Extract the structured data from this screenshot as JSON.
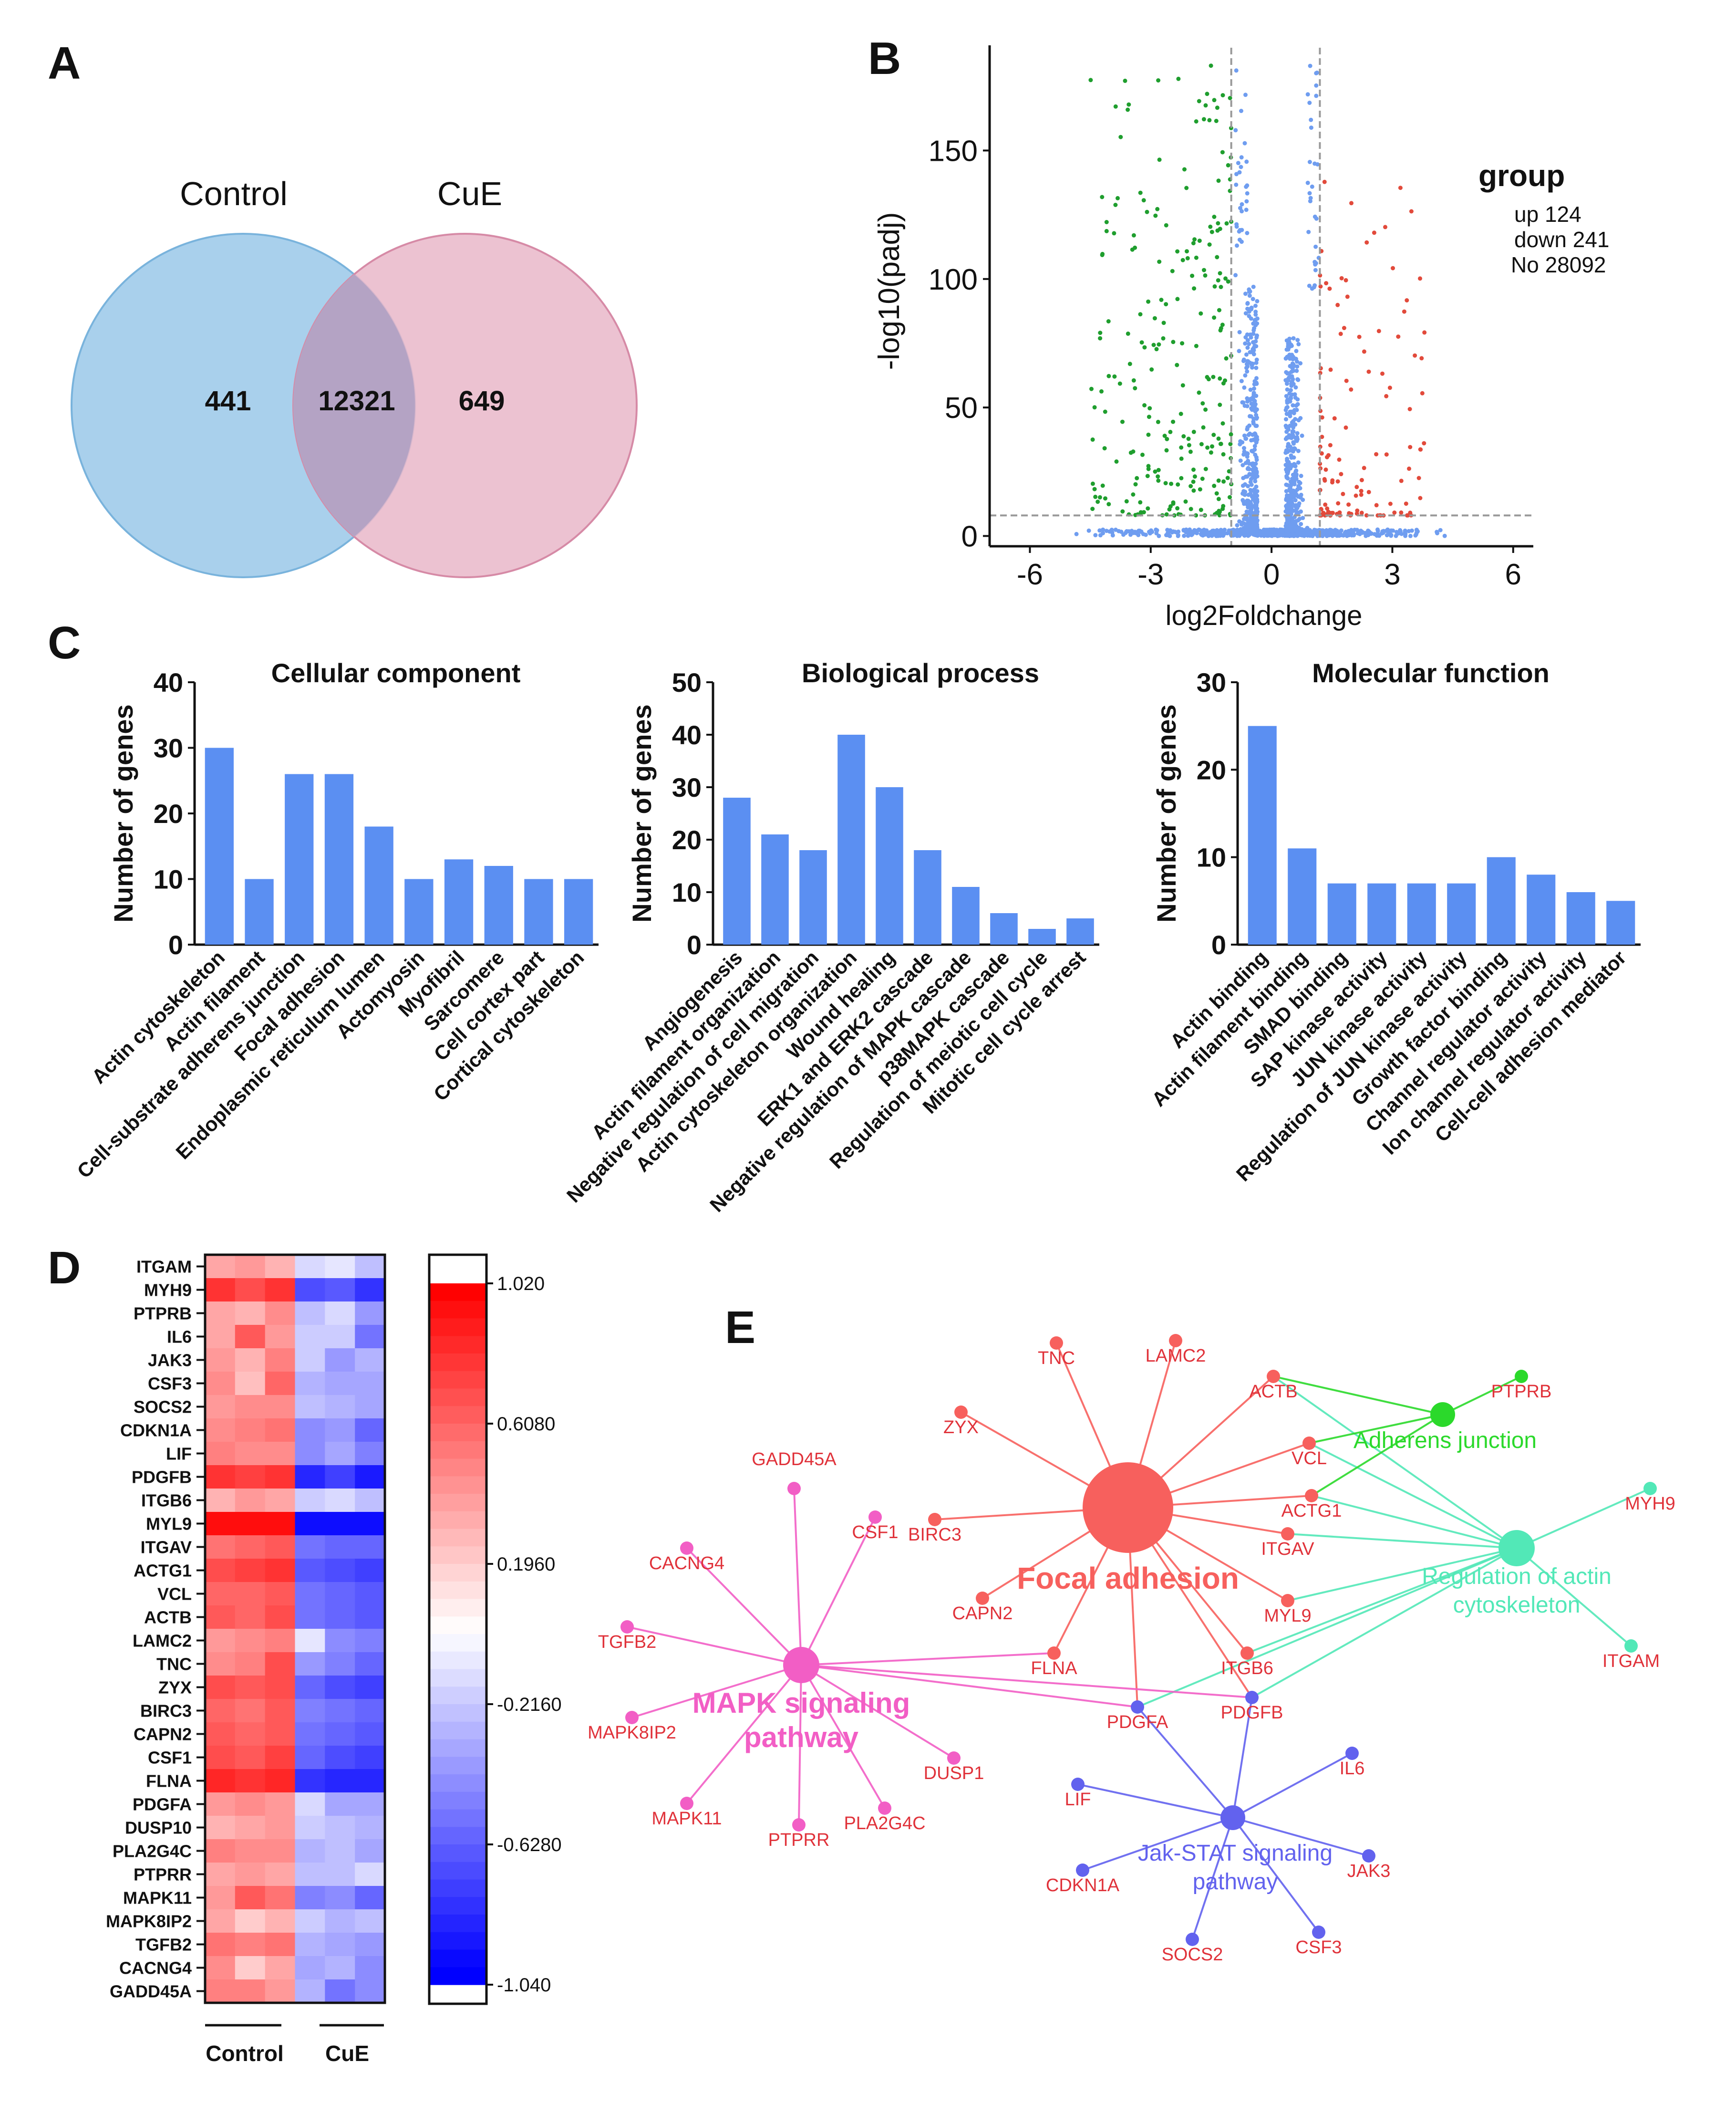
{
  "panel_labels": [
    "A",
    "B",
    "C",
    "D",
    "E"
  ],
  "colors": {
    "control_circle": "#a9d0ec",
    "cue_circle": "#e9b7c9",
    "overlap": "#b4a3c4",
    "bar": "#5b8ff2",
    "volcano_up": "#e24a3b",
    "volcano_down": "#1f9e2e",
    "volcano_ns": "#6f9df0",
    "focal_adhesion": "#f7605d",
    "mapk": "#f25ec5",
    "jak_stat": "#6262ee",
    "adherens": "#2bd92b",
    "actin_reg": "#52e8b7",
    "gene_label": "#e0323a"
  },
  "chart_data": [
    {
      "panel": "A",
      "type": "venn",
      "sets": [
        "Control",
        "CuE"
      ],
      "values": {
        "control_only": "441",
        "shared": "12321",
        "cue_only": "649"
      }
    },
    {
      "panel": "B",
      "type": "scatter",
      "xlabel": "log2Foldchange",
      "ylabel": "-log10(padj)",
      "xlim": [
        -7,
        6.5
      ],
      "ylim": [
        -4,
        190
      ],
      "xticks": [
        "-6",
        "-3",
        "0",
        "3",
        "6"
      ],
      "yticks": [
        "0",
        "50",
        "100",
        "150"
      ],
      "thresholds": {
        "log2fc": [
          -1,
          1.2
        ],
        "neglog10padj": 8
      },
      "legend": {
        "title": "group",
        "entries": [
          "up 124",
          "down 241",
          "No 28092"
        ]
      },
      "counts": {
        "up": 124,
        "down": 241,
        "ns": 28092
      }
    },
    {
      "panel": "C",
      "type": "bar",
      "title": "Cellular component",
      "ylabel": "Number of genes",
      "ylim": [
        0,
        40
      ],
      "yticks": [
        "0",
        "10",
        "20",
        "30",
        "40"
      ],
      "categories": [
        "Actin cytoskeleton",
        "Actin filament",
        "Cell-substrate adherens junction",
        "Focal adhesion",
        "Endoplasmic reticulum lumen",
        "Actomyosin",
        "Myofibril",
        "Sarcomere",
        "Cell cortex part",
        "Cortical cytoskeleton"
      ],
      "values": [
        30,
        10,
        26,
        26,
        18,
        10,
        13,
        12,
        10,
        10
      ]
    },
    {
      "panel": "C",
      "type": "bar",
      "title": "Biological process",
      "ylabel": "Number of genes",
      "ylim": [
        0,
        50
      ],
      "yticks": [
        "0",
        "10",
        "20",
        "30",
        "40",
        "50"
      ],
      "categories": [
        "Angiogenesis",
        "Actin filament organization",
        "Negative regulation of cell migration",
        "Actin cytoskeleton organization",
        "Wound healing",
        "ERK1 and ERK2 cascade",
        "Negative regulation of MAPK cascade",
        "p38MAPK cascade",
        "Regulation of meiotic cell cycle",
        "Mitotic cell cycle arrest"
      ],
      "values": [
        28,
        21,
        18,
        40,
        30,
        18,
        11,
        6,
        3,
        5
      ]
    },
    {
      "panel": "C",
      "type": "bar",
      "title": "Molecular function",
      "ylabel": "Number of genes",
      "ylim": [
        0,
        30
      ],
      "yticks": [
        "0",
        "10",
        "20",
        "30"
      ],
      "categories": [
        "Actin binding",
        "Actin filament binding",
        "SMAD binding",
        "SAP kinase activity",
        "JUN kinase activity",
        "Regulation of JUN kinase activity",
        "Growth factor binding",
        "Channel regulator activity",
        "Ion channel regulator activity",
        "Cell-cell adhesion mediator"
      ],
      "values": [
        25,
        11,
        7,
        7,
        7,
        7,
        10,
        8,
        6,
        5
      ]
    },
    {
      "panel": "D",
      "type": "heatmap",
      "rows": [
        "ITGAM",
        "MYH9",
        "PTPRB",
        "IL6",
        "JAK3",
        "CSF3",
        "SOCS2",
        "CDKN1A",
        "LIF",
        "PDGFB",
        "ITGB6",
        "MYL9",
        "ITGAV",
        "ACTG1",
        "VCL",
        "ACTB",
        "LAMC2",
        "TNC",
        "ZYX",
        "BIRC3",
        "CAPN2",
        "CSF1",
        "FLNA",
        "PDGFA",
        "DUSP10",
        "PLA2G4C",
        "PTPRR",
        "MAPK11",
        "MAPK8IP2",
        "TGFB2",
        "CACNG4",
        "GADD45A"
      ],
      "groups": [
        "Control",
        "CuE"
      ],
      "values": [
        [
          0.35,
          0.4,
          0.3,
          -0.15,
          -0.1,
          -0.25
        ],
        [
          0.8,
          0.7,
          0.8,
          -0.7,
          -0.65,
          -0.8
        ],
        [
          0.35,
          0.3,
          0.45,
          -0.25,
          -0.15,
          -0.4
        ],
        [
          0.35,
          0.65,
          0.4,
          -0.2,
          -0.2,
          -0.55
        ],
        [
          0.4,
          0.3,
          0.5,
          -0.2,
          -0.4,
          -0.3
        ],
        [
          0.45,
          0.25,
          0.6,
          -0.3,
          -0.35,
          -0.35
        ],
        [
          0.4,
          0.45,
          0.45,
          -0.25,
          -0.3,
          -0.35
        ],
        [
          0.45,
          0.5,
          0.55,
          -0.45,
          -0.4,
          -0.6
        ],
        [
          0.5,
          0.45,
          0.45,
          -0.45,
          -0.35,
          -0.5
        ],
        [
          0.8,
          0.75,
          0.8,
          -0.85,
          -0.75,
          -0.9
        ],
        [
          0.3,
          0.4,
          0.35,
          -0.2,
          -0.15,
          -0.25
        ],
        [
          0.95,
          0.95,
          0.95,
          -0.95,
          -0.95,
          -0.95
        ],
        [
          0.55,
          0.6,
          0.65,
          -0.55,
          -0.6,
          -0.6
        ],
        [
          0.7,
          0.75,
          0.8,
          -0.65,
          -0.7,
          -0.75
        ],
        [
          0.6,
          0.6,
          0.65,
          -0.55,
          -0.6,
          -0.65
        ],
        [
          0.65,
          0.6,
          0.7,
          -0.55,
          -0.6,
          -0.65
        ],
        [
          0.4,
          0.45,
          0.5,
          -0.1,
          -0.45,
          -0.5
        ],
        [
          0.45,
          0.5,
          0.7,
          -0.4,
          -0.5,
          -0.6
        ],
        [
          0.7,
          0.65,
          0.7,
          -0.6,
          -0.7,
          -0.75
        ],
        [
          0.6,
          0.55,
          0.65,
          -0.5,
          -0.55,
          -0.6
        ],
        [
          0.65,
          0.6,
          0.65,
          -0.55,
          -0.6,
          -0.65
        ],
        [
          0.7,
          0.65,
          0.75,
          -0.6,
          -0.7,
          -0.75
        ],
        [
          0.85,
          0.8,
          0.85,
          -0.8,
          -0.85,
          -0.85
        ],
        [
          0.4,
          0.45,
          0.4,
          -0.15,
          -0.35,
          -0.35
        ],
        [
          0.3,
          0.35,
          0.4,
          -0.2,
          -0.25,
          -0.3
        ],
        [
          0.5,
          0.45,
          0.45,
          -0.3,
          -0.25,
          -0.35
        ],
        [
          0.35,
          0.4,
          0.35,
          -0.25,
          -0.25,
          -0.15
        ],
        [
          0.4,
          0.65,
          0.55,
          -0.5,
          -0.45,
          -0.6
        ],
        [
          0.35,
          0.2,
          0.3,
          -0.2,
          -0.3,
          -0.25
        ],
        [
          0.55,
          0.5,
          0.55,
          -0.3,
          -0.35,
          -0.4
        ],
        [
          0.45,
          0.2,
          0.35,
          -0.35,
          -0.3,
          -0.45
        ],
        [
          0.5,
          0.5,
          0.4,
          -0.3,
          -0.55,
          -0.45
        ]
      ],
      "colorbar": {
        "min": -1.04,
        "max": 1.02,
        "ticks": [
          "1.020",
          "0.6080",
          "0.1960",
          "-0.2160",
          "-0.6280",
          "-1.040"
        ]
      }
    },
    {
      "panel": "E",
      "type": "network",
      "pathways": [
        {
          "name_lines": [
            "Focal adhesion"
          ],
          "color": "#f7605d"
        },
        {
          "name_lines": [
            "MAPK signaling",
            "pathway"
          ],
          "color": "#f25ec5"
        },
        {
          "name_lines": [
            "Jak-STAT signaling",
            "pathway"
          ],
          "color": "#6262ee"
        },
        {
          "name_lines": [
            "Adherens junction"
          ],
          "color": "#2bd92b"
        },
        {
          "name_lines": [
            "Regulation of actin",
            "cytoskeleton"
          ],
          "color": "#52e8b7"
        }
      ],
      "genes": [
        "TNC",
        "LAMC2",
        "ACTB",
        "PTPRB",
        "ZYX",
        "VCL",
        "MYH9",
        "ACTG1",
        "BIRC3",
        "ITGAV",
        "GADD45A",
        "CSF1",
        "CACNG4",
        "CAPN2",
        "MYL9",
        "TGFB2",
        "FLNA",
        "ITGB6",
        "ITGAM",
        "PDGFA",
        "PDGFB",
        "MAPK8IP2",
        "DUSP1",
        "IL6",
        "LIF",
        "MAPK11",
        "PLA2G4C",
        "PTPRR",
        "JAK3",
        "CDKN1A",
        "SOCS2",
        "CSF3"
      ]
    }
  ]
}
